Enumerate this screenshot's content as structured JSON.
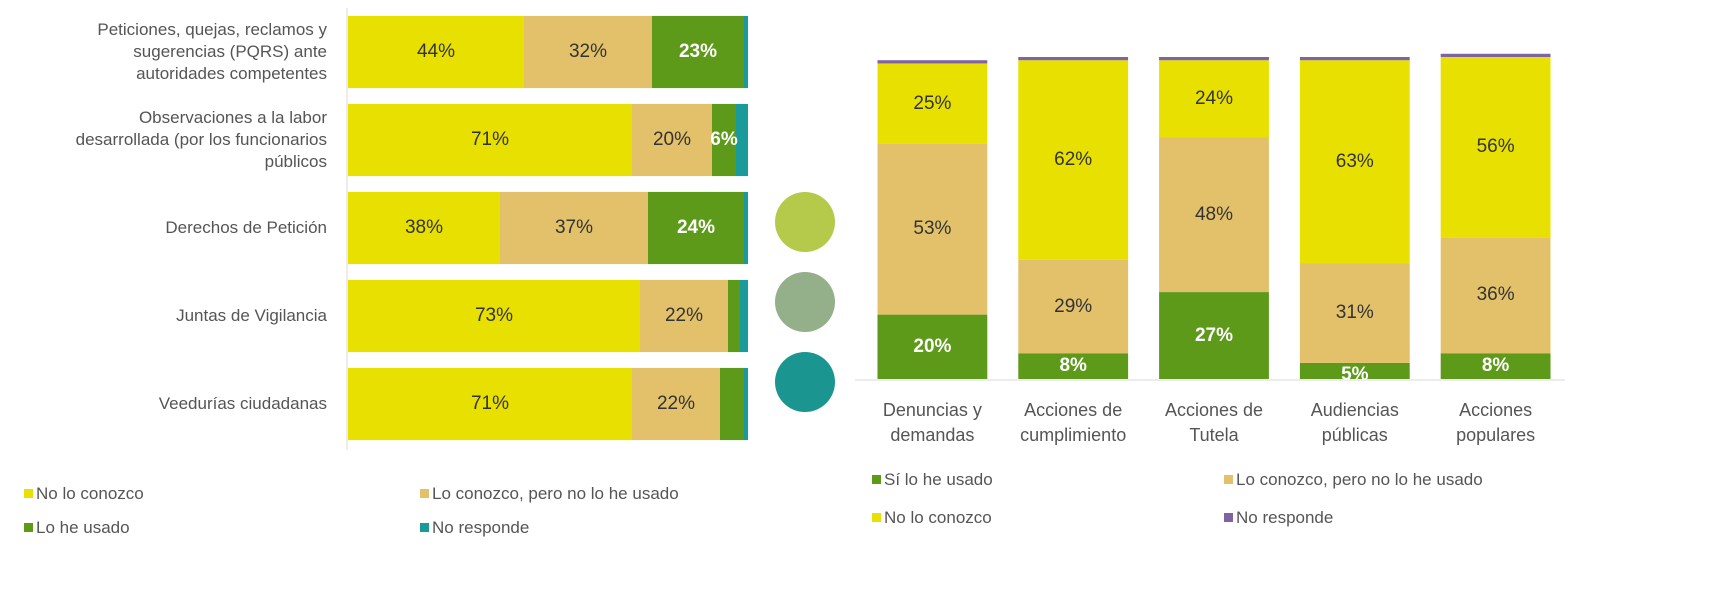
{
  "chart_data": [
    {
      "type": "bar",
      "orientation": "horizontal",
      "stacked": true,
      "categories": [
        "Peticiones, quejas, reclamos y\nsugerencias (PQRS) ante\nautoridades competentes",
        "Observaciones a la labor\ndesarrollada (por los funcionarios\npúblicos",
        "Derechos de Petición",
        "Juntas de Vigilancia",
        "Veedurías ciudadanas"
      ],
      "xlim": [
        0,
        100
      ],
      "series": [
        {
          "name": "No lo conozco",
          "color": "#e8e000",
          "label_color": "#333333",
          "values": [
            44,
            71,
            38,
            73,
            71
          ],
          "value_labels": [
            "44%",
            "71%",
            "38%",
            "73%",
            "71%"
          ]
        },
        {
          "name": "Lo conozco, pero no lo he usado",
          "color": "#e2c16a",
          "label_color": "#333333",
          "values": [
            32,
            20,
            37,
            22,
            22
          ],
          "value_labels": [
            "32%",
            "20%",
            "37%",
            "22%",
            "22%"
          ]
        },
        {
          "name": "Lo he usado",
          "color": "#5e9a1a",
          "label_color": "#ffffff",
          "values": [
            23,
            6,
            24,
            3,
            6
          ],
          "value_labels": [
            "23%",
            "6%",
            "24%",
            null,
            null
          ]
        },
        {
          "name": "No responde",
          "color": "#1a9a9a",
          "label_color": "#ffffff",
          "values": [
            1,
            3,
            1,
            2,
            1
          ],
          "value_labels": [
            null,
            null,
            null,
            null,
            null
          ]
        }
      ]
    },
    {
      "type": "bar",
      "orientation": "vertical",
      "stacked": true,
      "categories": [
        "Denuncias y\ndemandas",
        "Acciones de\ncumplimiento",
        "Acciones de\nTutela",
        "Audiencias\npúblicas",
        "Acciones\npopulares"
      ],
      "ylim": [
        0,
        100
      ],
      "series": [
        {
          "name": "Sí lo he usado",
          "color": "#5e9a1a",
          "label_color": "#ffffff",
          "values": [
            20,
            8,
            27,
            5,
            8
          ],
          "value_labels": [
            "20%",
            "8%",
            "27%",
            "5%",
            "8%"
          ]
        },
        {
          "name": "Lo conozco, pero no lo he usado",
          "color": "#e2c16a",
          "label_color": "#333333",
          "values": [
            53,
            29,
            48,
            31,
            36
          ],
          "value_labels": [
            "53%",
            "29%",
            "48%",
            "31%",
            "36%"
          ]
        },
        {
          "name": "No lo conozco",
          "color": "#e8e000",
          "label_color": "#333333",
          "values": [
            25,
            62,
            24,
            63,
            56
          ],
          "value_labels": [
            "25%",
            "62%",
            "24%",
            "63%",
            "56%"
          ]
        },
        {
          "name": "No responde",
          "color": "#8064a2",
          "label_color": "#ffffff",
          "values": [
            1,
            1,
            1,
            1,
            1
          ],
          "value_labels": [
            null,
            null,
            null,
            null,
            null
          ]
        }
      ]
    }
  ]
}
